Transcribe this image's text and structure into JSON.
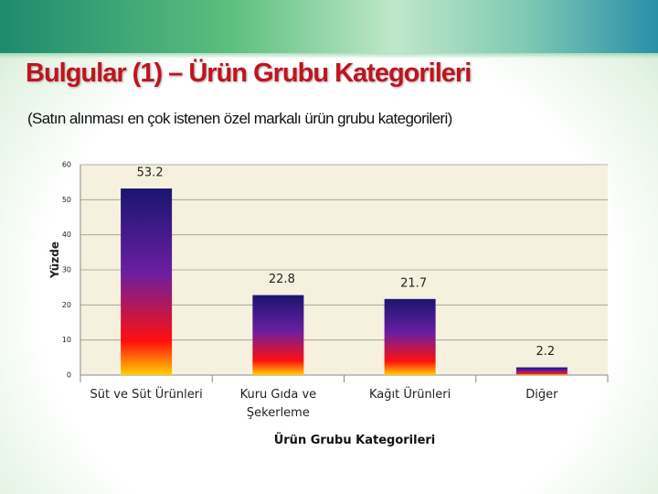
{
  "chart_data": {
    "type": "bar",
    "title": "Bulgular (1) – Ürün Grubu Kategorileri",
    "subtitle": "(Satın alınması en çok istenen özel markalı ürün grubu kategorileri)",
    "y_label": "Yüzde",
    "x_label": "Ürün Grubu Kategorileri",
    "categories": [
      "Süt ve Süt Ürünleri",
      "Kuru Gıda ve Şekerleme",
      "Kağıt Ürünleri",
      "Diğer"
    ],
    "values": [
      53.2,
      22.8,
      21.7,
      2.2
    ],
    "bar_gradient": [
      "#1a1570",
      "#6a1fa0",
      "#ff1010",
      "#ffd000"
    ],
    "ylim": [
      0,
      60
    ],
    "yticks": [
      0,
      10,
      20,
      30,
      40,
      50,
      60
    ],
    "grid": true
  }
}
